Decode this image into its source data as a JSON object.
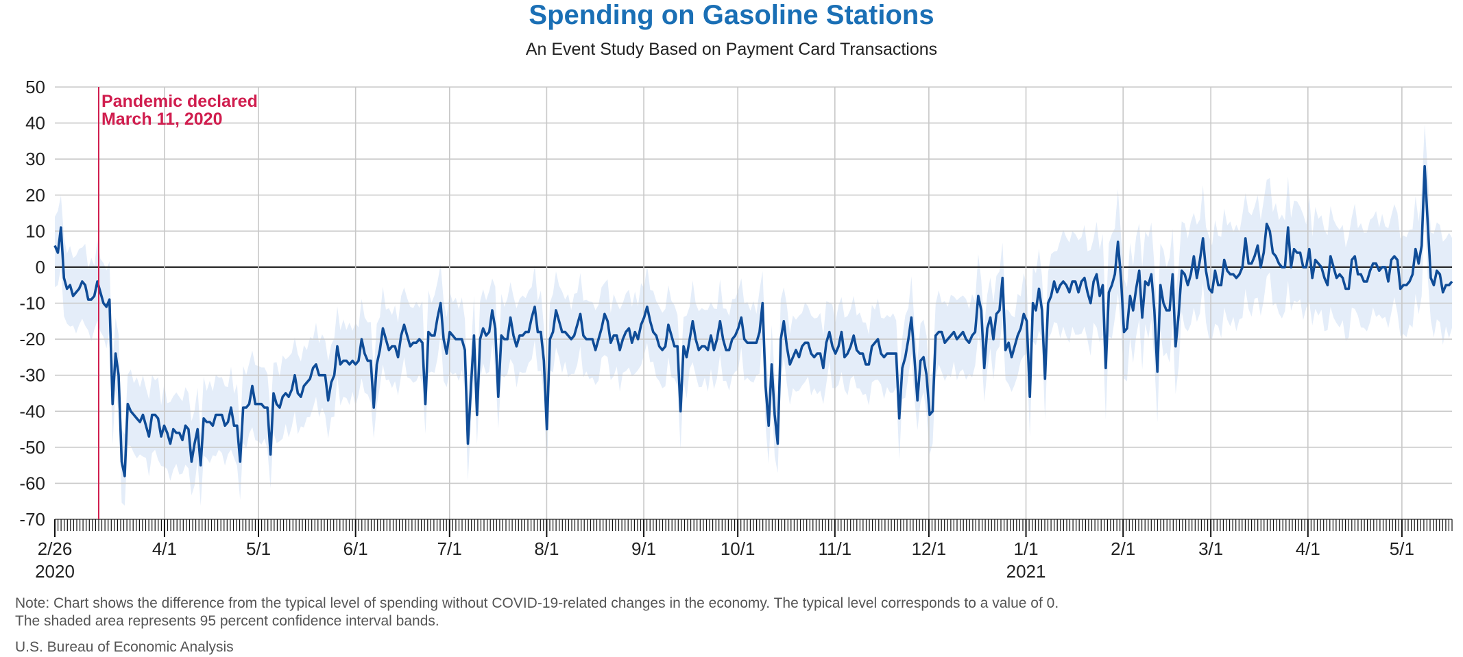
{
  "header": {
    "title": "Spending on Gasoline Stations",
    "subtitle": "An Event Study Based on Payment Card Transactions"
  },
  "footer": {
    "note_line1": "Note: Chart shows the difference from the typical level of spending without COVID-19-related changes in the economy. The typical level corresponds to a value of 0.",
    "note_line2": "The shaded area represents 95 percent confidence interval bands.",
    "source": "U.S. Bureau of Economic Analysis"
  },
  "colors": {
    "title": "#1a6fb5",
    "line": "#0f4c97",
    "band": "#dfeaf8",
    "grid": "#c8c8c8",
    "zero_line": "#111111",
    "event": "#d01d4e",
    "text": "#222222"
  },
  "chart_data": {
    "type": "line",
    "x_start": "2020-02-26",
    "x_end": "2021-05-17",
    "ylim": [
      -70,
      50
    ],
    "yticks": [
      50,
      40,
      30,
      20,
      10,
      0,
      -10,
      -20,
      -30,
      -40,
      -50,
      -60,
      -70
    ],
    "grid": true,
    "x_ticklabels": [
      {
        "date": "2020-02-26",
        "label": "2/26",
        "year": "2020"
      },
      {
        "date": "2020-04-01",
        "label": "4/1"
      },
      {
        "date": "2020-05-01",
        "label": "5/1"
      },
      {
        "date": "2020-06-01",
        "label": "6/1"
      },
      {
        "date": "2020-07-01",
        "label": "7/1"
      },
      {
        "date": "2020-08-01",
        "label": "8/1"
      },
      {
        "date": "2020-09-01",
        "label": "9/1"
      },
      {
        "date": "2020-10-01",
        "label": "10/1"
      },
      {
        "date": "2020-11-01",
        "label": "11/1"
      },
      {
        "date": "2020-12-01",
        "label": "12/1"
      },
      {
        "date": "2021-01-01",
        "label": "1/1",
        "year": "2021"
      },
      {
        "date": "2021-02-01",
        "label": "2/1"
      },
      {
        "date": "2021-03-01",
        "label": "3/1"
      },
      {
        "date": "2021-04-01",
        "label": "4/1"
      },
      {
        "date": "2021-05-01",
        "label": "5/1"
      }
    ],
    "event": {
      "date": "2020-03-11",
      "label_line1": "Pandemic declared",
      "label_line2": "March 11, 2020"
    },
    "series": [
      {
        "values": [
          6,
          4,
          11,
          -3,
          -6,
          -5,
          -8,
          -7,
          -6,
          -4,
          -5,
          -9,
          -9,
          -8,
          -4,
          -7,
          -10,
          -11,
          -9,
          -38,
          -24,
          -30,
          -54,
          -58,
          -38,
          -40,
          -41,
          -42,
          -43,
          -41,
          -44,
          -47,
          -41,
          -41,
          -42,
          -47,
          -44,
          -46,
          -49,
          -45,
          -46,
          -46,
          -48,
          -44,
          -45,
          -54,
          -49,
          -45,
          -55,
          -42,
          -43,
          -43,
          -44,
          -41,
          -41,
          -41,
          -44,
          -43,
          -39,
          -44,
          -44,
          -54,
          -39,
          -39,
          -38,
          -33,
          -38,
          -38,
          -38,
          -39,
          -39,
          -52,
          -35,
          -38,
          -39,
          -36,
          -35,
          -36,
          -34,
          -30,
          -35,
          -36,
          -33,
          -32,
          -31,
          -28,
          -27,
          -30,
          -30,
          -30,
          -37,
          -32,
          -30,
          -22,
          -27,
          -26,
          -26,
          -27,
          -26,
          -27,
          -26,
          -20,
          -24,
          -26,
          -26,
          -39,
          -27,
          -23,
          -17,
          -20,
          -23,
          -22,
          -22,
          -25,
          -19,
          -16,
          -19,
          -22,
          -21,
          -21,
          -20,
          -21,
          -38,
          -18,
          -19,
          -19,
          -14,
          -10,
          -20,
          -24,
          -18,
          -19,
          -20,
          -20,
          -20,
          -23,
          -49,
          -33,
          -19,
          -41,
          -20,
          -17,
          -19,
          -18,
          -12,
          -17,
          -36,
          -19,
          -20,
          -20,
          -14,
          -19,
          -22,
          -19,
          -19,
          -18,
          -18,
          -14,
          -11,
          -18,
          -18,
          -26,
          -45,
          -20,
          -18,
          -12,
          -15,
          -18,
          -18,
          -19,
          -20,
          -19,
          -16,
          -13,
          -19,
          -20,
          -20,
          -20,
          -23,
          -20,
          -17,
          -13,
          -15,
          -21,
          -19,
          -19,
          -23,
          -20,
          -18,
          -17,
          -21,
          -18,
          -20,
          -16,
          -14,
          -11,
          -15,
          -18,
          -19,
          -22,
          -23,
          -22,
          -16,
          -19,
          -22,
          -22,
          -40,
          -22,
          -25,
          -20,
          -15,
          -20,
          -23,
          -22,
          -22,
          -23,
          -19,
          -23,
          -20,
          -15,
          -20,
          -23,
          -23,
          -20,
          -19,
          -17,
          -14,
          -20,
          -21,
          -21,
          -21,
          -21,
          -18,
          -10,
          -33,
          -44,
          -27,
          -41,
          -49,
          -20,
          -15,
          -22,
          -27,
          -25,
          -23,
          -25,
          -22,
          -21,
          -21,
          -24,
          -25,
          -24,
          -24,
          -28,
          -21,
          -18,
          -22,
          -24,
          -22,
          -18,
          -25,
          -24,
          -22,
          -19,
          -23,
          -24,
          -24,
          -27,
          -27,
          -22,
          -21,
          -20,
          -24,
          -25,
          -24,
          -24,
          -24,
          -24,
          -42,
          -28,
          -25,
          -20,
          -14,
          -25,
          -37,
          -26,
          -25,
          -30,
          -41,
          -40,
          -19,
          -18,
          -18,
          -21,
          -20,
          -19,
          -18,
          -20,
          -19,
          -18,
          -20,
          -21,
          -19,
          -18,
          -8,
          -12,
          -28,
          -17,
          -14,
          -20,
          -13,
          -12,
          -3,
          -23,
          -21,
          -25,
          -22,
          -19,
          -17,
          -13,
          -15,
          -36,
          -10,
          -12,
          -6,
          -12,
          -31,
          -10,
          -8,
          -4,
          -7,
          -5,
          -4,
          -5,
          -7,
          -4,
          -4,
          -7,
          -4,
          -3,
          -7,
          -10,
          -4,
          -2,
          -8,
          -5,
          -28,
          -7,
          -5,
          -2,
          7,
          -3,
          -18,
          -17,
          -8,
          -12,
          -6,
          -1,
          -14,
          -4,
          -5,
          -2,
          -12,
          -29,
          -5,
          -10,
          -12,
          -12,
          -2,
          -22,
          -13,
          -1,
          -2,
          -5,
          -2,
          3,
          -3,
          2,
          8,
          -1,
          -6,
          -7,
          -1,
          -5,
          -5,
          2,
          -1,
          -2,
          -2,
          -3,
          -2,
          0,
          8,
          1,
          1,
          3,
          6,
          0,
          4,
          12,
          10,
          4,
          3,
          1,
          0,
          0,
          11,
          0,
          5,
          4,
          4,
          0,
          0,
          5,
          -3,
          2,
          1,
          0,
          -3,
          -5,
          3,
          0,
          -3,
          -2,
          -3,
          -6,
          -6,
          2,
          3,
          -2,
          -2,
          -4,
          -4,
          -1,
          1,
          1,
          -1,
          0,
          0,
          -4,
          2,
          3,
          2,
          -6,
          -5,
          -5,
          -4,
          -2,
          5,
          1,
          6,
          28,
          12,
          -3,
          -5,
          -1,
          -2,
          -7,
          -5,
          -5,
          -4
        ]
      }
    ],
    "ci_halfwidth": 8
  }
}
